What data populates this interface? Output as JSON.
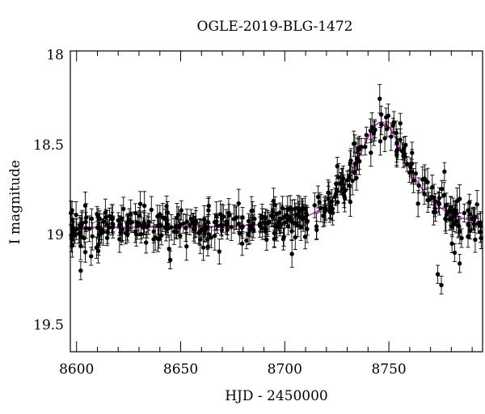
{
  "chart_data": {
    "type": "scatter",
    "title": "OGLE-2019-BLG-1472",
    "xlabel": "HJD - 2450000",
    "ylabel": "I magnitude",
    "xlim": [
      8597,
      8795
    ],
    "ylim": [
      19.65,
      17.98
    ],
    "y_inverted": true,
    "x_ticks": [
      8600,
      8650,
      8700,
      8750
    ],
    "y_ticks": [
      18,
      18.5,
      19,
      19.5
    ],
    "x_tick_labels": [
      "8600",
      "8650",
      "8700",
      "8750"
    ],
    "y_tick_labels": [
      "18",
      "18.5",
      "19",
      "19.5"
    ],
    "grid": false,
    "legend": "none",
    "model_color": "#cc33cc",
    "point_color": "#000000",
    "model": {
      "t0": 8746.5,
      "tE": 19.0,
      "u0": 0.68,
      "I_base": 18.96
    },
    "sampling": {
      "x_start": 8597,
      "x_end": 8795,
      "n_points": 440,
      "error_bar": [
        0.04,
        0.08
      ]
    },
    "outliers": [
      {
        "x": 8773.5,
        "y": 19.22
      },
      {
        "x": 8775.2,
        "y": 19.28
      },
      {
        "x": 8780.3,
        "y": 19.05
      },
      {
        "x": 8781.6,
        "y": 19.1
      },
      {
        "x": 8784.0,
        "y": 19.16
      },
      {
        "x": 8786.2,
        "y": 18.88
      },
      {
        "x": 8602.0,
        "y": 19.2
      },
      {
        "x": 8607.0,
        "y": 19.12
      },
      {
        "x": 8645.0,
        "y": 19.14
      },
      {
        "x": 8663.5,
        "y": 18.84
      },
      {
        "x": 8725.2,
        "y": 18.62
      },
      {
        "x": 8776.7,
        "y": 18.65
      }
    ]
  }
}
